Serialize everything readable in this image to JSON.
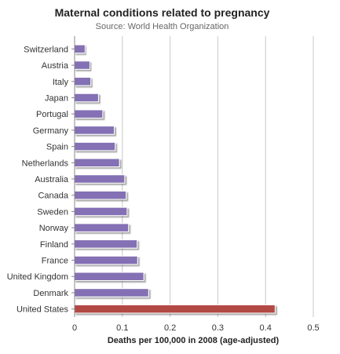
{
  "chart_data": {
    "type": "bar",
    "orientation": "horizontal",
    "title": "Maternal conditions related to pregnancy",
    "subtitle": "Source: World Health Organization",
    "xlabel": "Deaths per 100,000 in 2008 (age-adjusted)",
    "ylabel": "",
    "xlim": [
      0,
      0.5
    ],
    "xticks": [
      0,
      0.1,
      0.2,
      0.3,
      0.4,
      0.5
    ],
    "xtick_labels": [
      "0",
      "0.1",
      "0.2",
      "0.3",
      "0.4",
      "0.5"
    ],
    "grid": true,
    "legend": "none",
    "categories": [
      "Switzerland",
      "Austria",
      "Italy",
      "Japan",
      "Portugal",
      "Germany",
      "Spain",
      "Netherlands",
      "Australia",
      "Canada",
      "Sweden",
      "Norway",
      "Finland",
      "France",
      "United Kingdom",
      "Denmark",
      "United States"
    ],
    "values": [
      0.022,
      0.032,
      0.034,
      0.05,
      0.059,
      0.083,
      0.085,
      0.094,
      0.105,
      0.108,
      0.11,
      0.113,
      0.131,
      0.132,
      0.145,
      0.155,
      0.42
    ],
    "bar_colors": [
      "#8470b4",
      "#8470b4",
      "#8470b4",
      "#8470b4",
      "#8470b4",
      "#8470b4",
      "#8470b4",
      "#8470b4",
      "#8470b4",
      "#8470b4",
      "#8470b4",
      "#8470b4",
      "#8470b4",
      "#8470b4",
      "#8470b4",
      "#8470b4",
      "#b34a45"
    ],
    "grid_color": "#c8c8c8",
    "axis_color": "#888888"
  }
}
